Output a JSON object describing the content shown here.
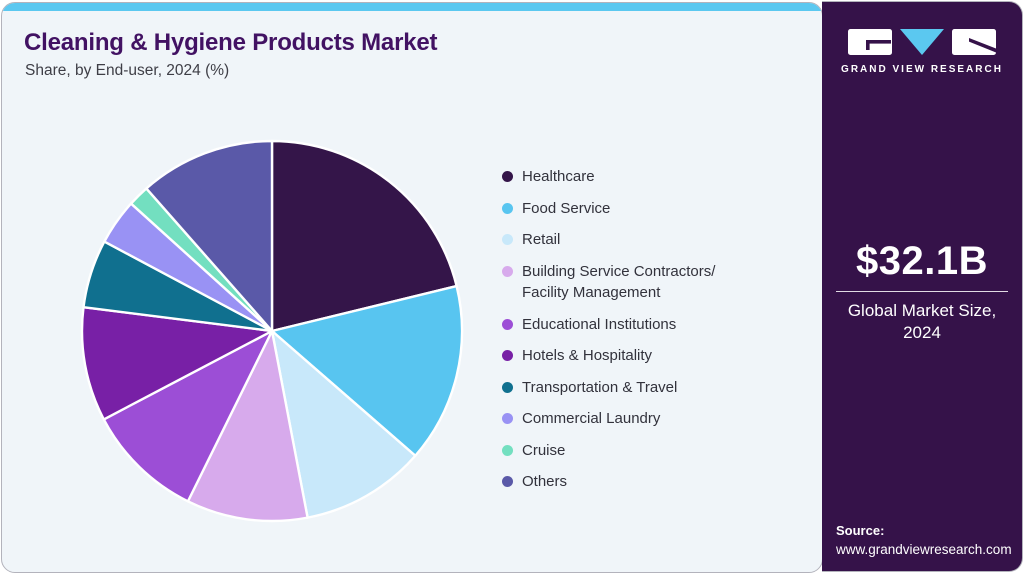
{
  "header": {
    "title": "Cleaning & Hygiene Products Market",
    "subtitle": "Share, by End-user, 2024 (%)"
  },
  "chart_data": {
    "type": "pie",
    "title": "Cleaning & Hygiene Products Market Share, by End-user, 2024 (%)",
    "unit": "%",
    "start_angle_deg": 0,
    "direction": "clockwise",
    "legend_position": "right",
    "values_estimated_from_arc_angles": true,
    "series": [
      {
        "label": "Healthcare",
        "value": 21.2,
        "color": "#341549"
      },
      {
        "label": "Food Service",
        "value": 15.2,
        "color": "#58c5f0"
      },
      {
        "label": "Retail",
        "value": 10.6,
        "color": "#c8e8fa"
      },
      {
        "label": "Building Service Contractors/\nFacility Management",
        "value": 10.3,
        "color": "#d7aaec"
      },
      {
        "label": "Educational Institutions",
        "value": 10.0,
        "color": "#9c4ed6"
      },
      {
        "label": "Hotels & Hospitality",
        "value": 9.7,
        "color": "#7820a6"
      },
      {
        "label": "Transportation & Travel",
        "value": 5.8,
        "color": "#10708f"
      },
      {
        "label": "Commercial Laundry",
        "value": 3.9,
        "color": "#9992f4"
      },
      {
        "label": "Cruise",
        "value": 1.8,
        "color": "#73dfc0"
      },
      {
        "label": "Others",
        "value": 11.5,
        "color": "#5a59a8"
      }
    ]
  },
  "sidebar": {
    "logo_text": "GRAND VIEW RESEARCH",
    "market_size_value": "$32.1B",
    "market_size_label_line1": "Global Market Size,",
    "market_size_label_line2": "2024",
    "source_label": "Source:",
    "source_url": "www.grandviewresearch.com"
  },
  "theme": {
    "accent_blue": "#5bc8f0",
    "sidebar_bg": "#351249",
    "title_color": "#421263",
    "card_bg": "#f0f5f9",
    "legend_text": "#32323c"
  }
}
